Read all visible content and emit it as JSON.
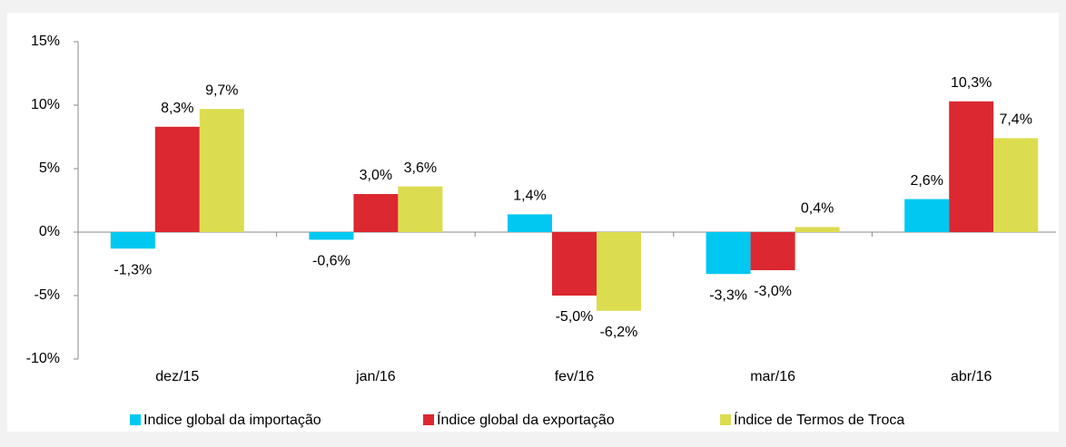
{
  "chart_data": {
    "type": "bar",
    "categories": [
      "dez/15",
      "jan/16",
      "fev/16",
      "mar/16",
      "abr/16"
    ],
    "series": [
      {
        "name": "Indice global da importação",
        "color": "#00c8f0",
        "values": [
          -1.3,
          -0.6,
          1.4,
          -3.3,
          2.6
        ],
        "value_labels": [
          "-1,3%",
          "-0,6%",
          "1,4%",
          "-3,3%",
          "2,6%"
        ]
      },
      {
        "name": "Índice global da exportação",
        "color": "#dc2830",
        "values": [
          8.3,
          3.0,
          -5.0,
          -3.0,
          10.3
        ],
        "value_labels": [
          "8,3%",
          "3,0%",
          "-5,0%",
          "-3,0%",
          "10,3%"
        ]
      },
      {
        "name": "Índice de Termos de Troca",
        "color": "#dcdc50",
        "values": [
          9.7,
          3.6,
          -6.2,
          0.4,
          7.4
        ],
        "value_labels": [
          "9,7%",
          "3,6%",
          "-6,2%",
          "0,4%",
          "7,4%"
        ]
      }
    ],
    "ylim": [
      -10,
      15
    ],
    "yticks": [
      {
        "value": -10,
        "label": "-10%"
      },
      {
        "value": -5,
        "label": "-5%"
      },
      {
        "value": 0,
        "label": "0%"
      },
      {
        "value": 5,
        "label": "5%"
      },
      {
        "value": 10,
        "label": "10%"
      },
      {
        "value": 15,
        "label": "15%"
      }
    ]
  }
}
